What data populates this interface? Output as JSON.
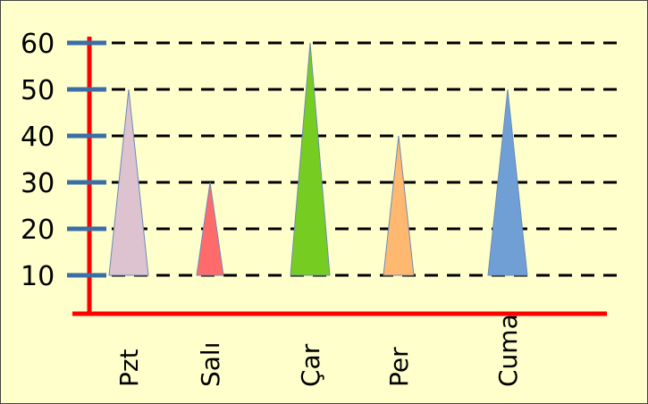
{
  "colors": {
    "background": "#ffffcc",
    "axis": "#ff0000",
    "tick_mark": "#3a6ea5",
    "gridline": "#000000"
  },
  "chart_data": {
    "type": "bar",
    "mark_shape": "triangle",
    "title": "",
    "xlabel": "",
    "ylabel": "",
    "categories": [
      "Pzt",
      "Salı",
      "Çar",
      "Per",
      "Cuma"
    ],
    "values": [
      50,
      30,
      60,
      40,
      50
    ],
    "baseline": 10,
    "colors": [
      "#dcc3cf",
      "#ff6b6b",
      "#77cc22",
      "#ffb870",
      "#6f9fd4"
    ],
    "y_ticks": [
      10,
      20,
      30,
      40,
      50,
      60
    ],
    "ylim": [
      10,
      60
    ],
    "grid": "horizontal-dashed",
    "legend": "none",
    "category_label_orientation": "vertical"
  }
}
